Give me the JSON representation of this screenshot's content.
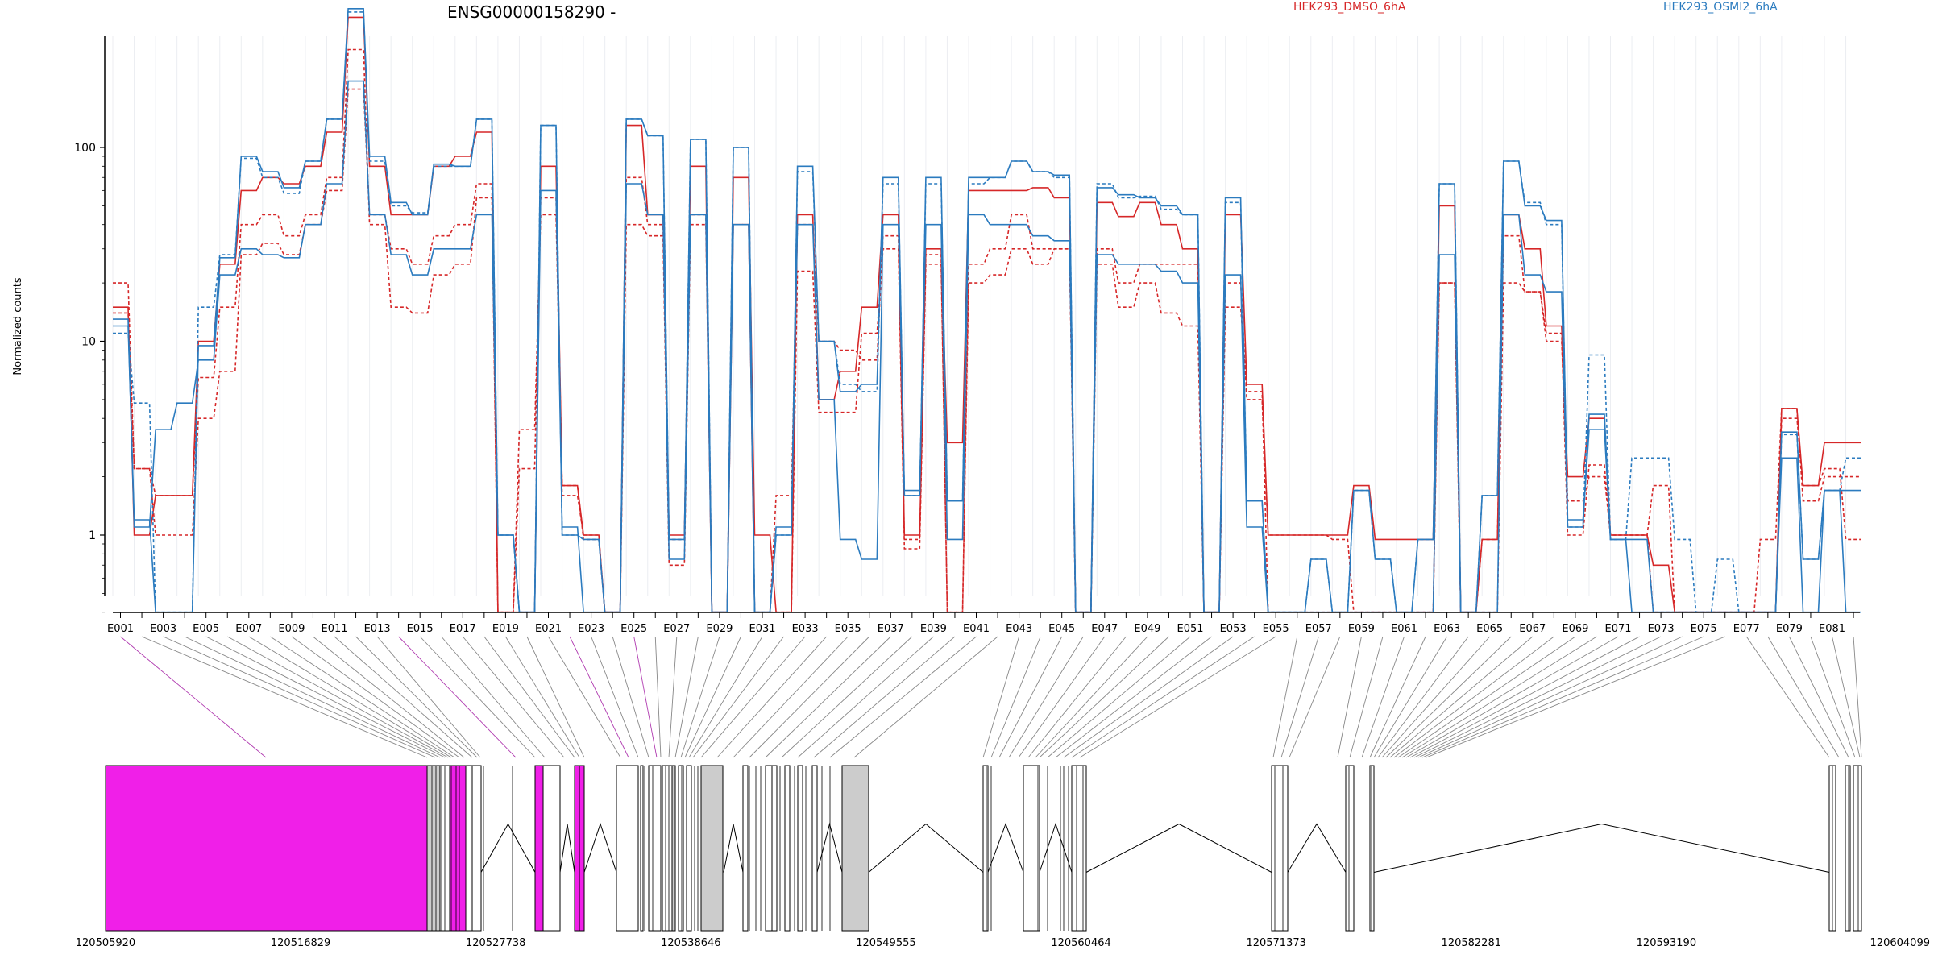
{
  "chart_data": {
    "type": "line",
    "title": "ENSG00000158290 -",
    "xlabel": "",
    "ylabel": "Normalized counts",
    "y_scale": "log",
    "y_ticks": [
      "1",
      "10",
      "100"
    ],
    "legend_placement": "top",
    "grid": true,
    "exons": [
      "E001",
      "E002",
      "E003",
      "E004",
      "E005",
      "E006",
      "E007",
      "E008",
      "E009",
      "E010",
      "E011",
      "E012",
      "E013",
      "E014",
      "E015",
      "E016",
      "E017",
      "E018",
      "E019",
      "E020",
      "E021",
      "E022",
      "E023",
      "E024",
      "E025",
      "E026",
      "E027",
      "E028",
      "E029",
      "E030",
      "E031",
      "E032",
      "E033",
      "E034",
      "E035",
      "E036",
      "E037",
      "E038",
      "E039",
      "E040",
      "E041",
      "E042",
      "E043",
      "E044",
      "E045",
      "E046",
      "E047",
      "E048",
      "E049",
      "E050",
      "E051",
      "E052",
      "E053",
      "E054",
      "E055",
      "E056",
      "E057",
      "E058",
      "E059",
      "E060",
      "E061",
      "E062",
      "E063",
      "E064",
      "E065",
      "E066",
      "E067",
      "E068",
      "E069",
      "E070",
      "E071",
      "E072",
      "E073",
      "E074",
      "E075",
      "E076",
      "E077",
      "E078",
      "E079",
      "E080",
      "E081",
      "E082"
    ],
    "exon_ticklabels": [
      "E001",
      "E003",
      "E005",
      "E007",
      "E009",
      "E011",
      "E013",
      "E015",
      "E017",
      "E019",
      "E021",
      "E023",
      "E025",
      "E027",
      "E029",
      "E031",
      "E033",
      "E035",
      "E037",
      "E039",
      "E041",
      "E043",
      "E045",
      "E047",
      "E049",
      "E051",
      "E053",
      "E055",
      "E057",
      "E059",
      "E061",
      "E063",
      "E065",
      "E067",
      "E069",
      "E071",
      "E073",
      "E075",
      "E077",
      "E079",
      "E081"
    ],
    "series": [
      {
        "name": "HEK293_DMSO_6hA",
        "color": "#d62728",
        "dash": false,
        "values": [
          15,
          1,
          1.6,
          1.6,
          10,
          25,
          60,
          70,
          65,
          80,
          120,
          470,
          80,
          45,
          45,
          80,
          90,
          120,
          0.4,
          0.4,
          80,
          1.8,
          1,
          0.4,
          130,
          45,
          1,
          80,
          0.4,
          70,
          1,
          0.4,
          45,
          5,
          7,
          15,
          45,
          1,
          30,
          3,
          60,
          60,
          60,
          62,
          55,
          0.4,
          52,
          44,
          52,
          40,
          30,
          0.4,
          45,
          6,
          1,
          1,
          1,
          1,
          1.8,
          0.95,
          0.95,
          0.95,
          50,
          0.4,
          0.95,
          45,
          30,
          12,
          2,
          4,
          1,
          1,
          0.7,
          0.4,
          0.4,
          0.4,
          0.4,
          0.4,
          4.5,
          1.8,
          3,
          3
        ]
      },
      {
        "name": "HEK293_DMSO_6hA",
        "color": "#d62728",
        "dash": true,
        "values": [
          20,
          2.2,
          1.6,
          1.6,
          6.5,
          15,
          40,
          45,
          35,
          45,
          70,
          320,
          40,
          15,
          14,
          22,
          25,
          55,
          0.4,
          3.5,
          45,
          1.6,
          1,
          0.4,
          40,
          35,
          0.7,
          40,
          0.4,
          40,
          0.4,
          0.4,
          23,
          4.3,
          4.3,
          11,
          30,
          0.85,
          25,
          0.4,
          20,
          22,
          30,
          25,
          30,
          0.4,
          25,
          15,
          20,
          14,
          12,
          0.4,
          15,
          5.5,
          0.4,
          0.4,
          0.4,
          0.4,
          0.4,
          0.4,
          0.4,
          0.4,
          20,
          0.4,
          0.4,
          20,
          18,
          10,
          1.5,
          2,
          1,
          1,
          1.8,
          0.4,
          0.4,
          0.4,
          0.4,
          0.95,
          4.5,
          1.5,
          2,
          2
        ]
      },
      {
        "name": "HEK293_DMSO_6hA",
        "color": "#d62728",
        "dash": true,
        "values": [
          14,
          2.2,
          1,
          1,
          4,
          7,
          28,
          32,
          28,
          40,
          60,
          200,
          45,
          30,
          25,
          35,
          40,
          65,
          0.4,
          2.2,
          55,
          1.8,
          0.95,
          0.4,
          70,
          40,
          0.95,
          45,
          0.4,
          40,
          0.4,
          1.6,
          40,
          10,
          9,
          8,
          35,
          0.95,
          28,
          0.4,
          25,
          30,
          45,
          30,
          30,
          0.4,
          30,
          20,
          25,
          25,
          25,
          0.4,
          20,
          5,
          1,
          1,
          1,
          0.95,
          0.4,
          0.4,
          0.4,
          0.4,
          20,
          0.4,
          0.95,
          35,
          18,
          11,
          1,
          2.3,
          1,
          1,
          0.4,
          0.4,
          0.4,
          0.4,
          0.4,
          0.4,
          4,
          1.8,
          2.2,
          0.95
        ]
      },
      {
        "name": "HEK293_OSMI2_6hA",
        "color": "#2b7bbf",
        "dash": false,
        "values": [
          12,
          1.2,
          0.4,
          0.4,
          9.5,
          27,
          90,
          75,
          62,
          85,
          140,
          520,
          90,
          52,
          45,
          82,
          80,
          140,
          1,
          0.4,
          130,
          1,
          0.95,
          0.4,
          140,
          115,
          0.95,
          110,
          0.4,
          100,
          0.4,
          1,
          80,
          10,
          5.5,
          6,
          70,
          1.6,
          70,
          1.5,
          70,
          70,
          85,
          75,
          72,
          0.4,
          62,
          57,
          55,
          50,
          45,
          0.4,
          55,
          1.5,
          0.4,
          0.4,
          0.75,
          0.4,
          1.7,
          0.75,
          0.4,
          0.95,
          65,
          0.4,
          1.6,
          85,
          50,
          42,
          1.2,
          3.5,
          0.95,
          0.95,
          0.4,
          0.4,
          0.4,
          0.4,
          0.4,
          0.4,
          3.4,
          0.75,
          1.7,
          0.4
        ]
      },
      {
        "name": "HEK293_OSMI2_6hA",
        "color": "#2b7bbf",
        "dash": true,
        "values": [
          11,
          4.8,
          0.4,
          0.4,
          15,
          28,
          88,
          70,
          58,
          85,
          140,
          500,
          85,
          50,
          46,
          80,
          80,
          140,
          1,
          0.4,
          130,
          1,
          0.95,
          0.4,
          140,
          115,
          0.95,
          110,
          0.4,
          100,
          0.4,
          1,
          75,
          10,
          6,
          5.5,
          65,
          1.6,
          65,
          1.5,
          65,
          70,
          85,
          75,
          70,
          0.4,
          65,
          55,
          56,
          48,
          45,
          0.4,
          52,
          1.5,
          0.4,
          0.4,
          0.75,
          0.4,
          1.7,
          0.75,
          0.4,
          0.95,
          65,
          0.4,
          1.6,
          85,
          52,
          40,
          1.1,
          8.5,
          0.95,
          2.5,
          2.5,
          0.95,
          0.4,
          0.75,
          0.4,
          0.4,
          3.3,
          0.75,
          1.7,
          2.5
        ]
      },
      {
        "name": "HEK293_OSMI2_6hA",
        "color": "#2b7bbf",
        "dash": false,
        "values": [
          13,
          1.1,
          3.5,
          4.8,
          8,
          22,
          30,
          28,
          27,
          40,
          65,
          220,
          45,
          28,
          22,
          30,
          30,
          45,
          1,
          0.4,
          60,
          1.1,
          0.4,
          0.4,
          65,
          45,
          0.75,
          45,
          0.4,
          40,
          0.4,
          1.1,
          40,
          5,
          0.95,
          0.75,
          40,
          1.7,
          40,
          0.95,
          45,
          40,
          40,
          35,
          33,
          0.4,
          28,
          25,
          25,
          23,
          20,
          0.4,
          22,
          1.1,
          0.4,
          0.4,
          0.4,
          0.4,
          0.4,
          0.4,
          0.4,
          0.4,
          28,
          0.4,
          0.4,
          45,
          22,
          18,
          1.1,
          4.2,
          0.95,
          0.4,
          0.4,
          0.4,
          0.4,
          0.4,
          0.4,
          0.4,
          2.5,
          0.4,
          1.7,
          1.7
        ]
      }
    ],
    "gene_model": {
      "coord_ticklabels": [
        "120505920",
        "120516829",
        "120527738",
        "120538646",
        "120549555",
        "120560464",
        "120571373",
        "120582281",
        "120593190",
        "120604099"
      ]
    }
  }
}
